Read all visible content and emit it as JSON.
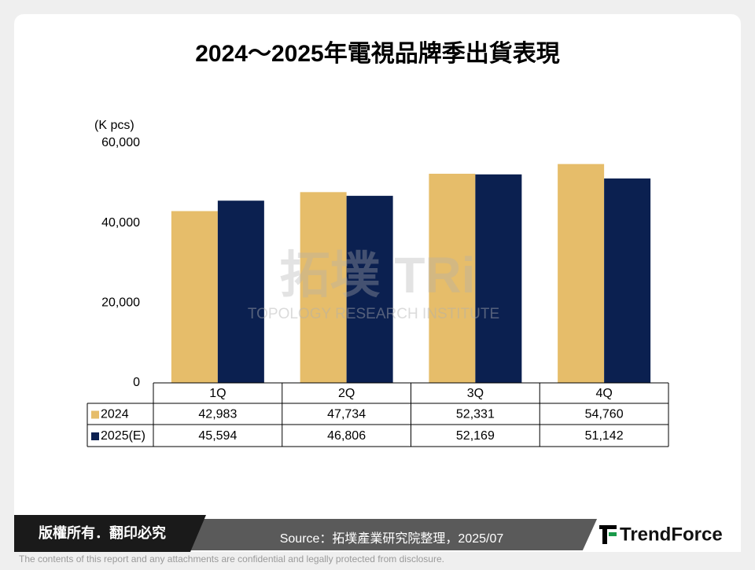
{
  "chart_data": {
    "type": "bar",
    "title": "2024～2025年電視品牌季出貨表現",
    "y_label": "(K pcs)",
    "categories": [
      "1Q",
      "2Q",
      "3Q",
      "4Q"
    ],
    "series": [
      {
        "name": "2024",
        "color": "#e6bd6a",
        "values": [
          42983,
          47734,
          52331,
          54760
        ],
        "value_labels": [
          "42,983",
          "47,734",
          "52,331",
          "54,760"
        ]
      },
      {
        "name": "2025(E)",
        "color": "#0b2050",
        "values": [
          45594,
          46806,
          52169,
          51142
        ],
        "value_labels": [
          "45,594",
          "46,806",
          "52,169",
          "51,142"
        ]
      }
    ],
    "ylim": [
      0,
      60000
    ],
    "yticks": [
      0,
      {
        "value": 20000,
        "label": "20,000"
      },
      {
        "value": 40000,
        "label": "40,000"
      },
      {
        "value": 60000,
        "label": "60,000"
      }
    ]
  },
  "watermark": {
    "logo": "拓墣 TRi",
    "institute": "TOPOLOGY RESEARCH INSTITUTE"
  },
  "footer": {
    "rights": "版權所有．翻印必究",
    "source": "Source：拓墣產業研究院整理，2025/07",
    "brand": "TrendForce",
    "disclaimer": "The contents of this report and any attachments are confidential and legally protected from disclosure."
  }
}
